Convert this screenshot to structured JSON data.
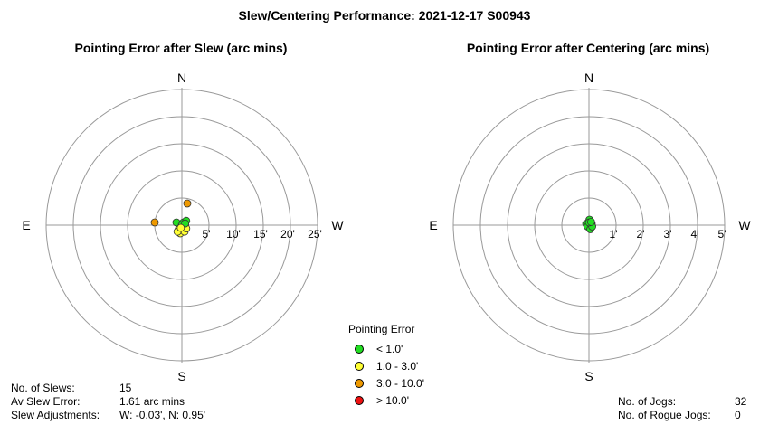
{
  "title": "Slew/Centering Performance: 2021-12-17  S00943",
  "legend": {
    "title": "Pointing Error",
    "items": [
      {
        "label": "< 1.0'",
        "color": "#22dd22"
      },
      {
        "label": "1.0 - 3.0'",
        "color": "#ffff33"
      },
      {
        "label": "3.0 - 10.0'",
        "color": "#ee9900"
      },
      {
        "label": "> 10.0'",
        "color": "#ee1111"
      }
    ]
  },
  "stats_left": {
    "slews_label": "No. of Slews:",
    "slews_value": "15",
    "av_label": "Av Slew Error:",
    "av_value": "1.61 arc mins",
    "adj_label": "Slew Adjustments:",
    "adj_value": "W: -0.03', N: 0.95'"
  },
  "stats_right": {
    "jogs_label": "No. of Jogs:",
    "jogs_value": "32",
    "rogue_label": "No. of Rogue Jogs:",
    "rogue_value": "0"
  },
  "chart_data": [
    {
      "type": "scatter",
      "title": "Pointing Error after Slew (arc mins)",
      "projection": "polar",
      "directions": {
        "n": "N",
        "s": "S",
        "e": "E",
        "w": "W"
      },
      "ring_labels": [
        "5'",
        "10'",
        "15'",
        "20'",
        "25'"
      ],
      "rmax": 25,
      "points": [
        {
          "x": 1.0,
          "y": 4.0,
          "cls": 2
        },
        {
          "x": -5.0,
          "y": 0.5,
          "cls": 2
        },
        {
          "x": -1.0,
          "y": 0.5,
          "cls": 0
        },
        {
          "x": 0.3,
          "y": 0.5,
          "cls": 0
        },
        {
          "x": 0.8,
          "y": 0.8,
          "cls": 0
        },
        {
          "x": 0.6,
          "y": 0.2,
          "cls": 0
        },
        {
          "x": 0.2,
          "y": -0.3,
          "cls": 1
        },
        {
          "x": -0.6,
          "y": -0.8,
          "cls": 1
        },
        {
          "x": -0.3,
          "y": -1.5,
          "cls": 1
        },
        {
          "x": 0.5,
          "y": -1.2,
          "cls": 1
        },
        {
          "x": 0.8,
          "y": -0.6,
          "cls": 1
        },
        {
          "x": -0.8,
          "y": -1.2,
          "cls": 1
        },
        {
          "x": 0.0,
          "y": 0.0,
          "cls": 0
        },
        {
          "x": 0.6,
          "y": 0.3,
          "cls": 0
        },
        {
          "x": -0.2,
          "y": -0.5,
          "cls": 1
        }
      ]
    },
    {
      "type": "scatter",
      "title": "Pointing Error after Centering (arc mins)",
      "projection": "polar",
      "directions": {
        "n": "N",
        "s": "S",
        "e": "E",
        "w": "W"
      },
      "ring_labels": [
        "1'",
        "2'",
        "3'",
        "4'",
        "5'"
      ],
      "rmax": 5,
      "points": [
        {
          "x": 0.02,
          "y": 0.2,
          "cls": 0
        },
        {
          "x": -0.1,
          "y": 0.05,
          "cls": 0
        },
        {
          "x": 0.1,
          "y": 0.05,
          "cls": 0
        },
        {
          "x": -0.05,
          "y": -0.05,
          "cls": 0
        },
        {
          "x": 0.05,
          "y": -0.15,
          "cls": 0
        },
        {
          "x": 0.12,
          "y": -0.05,
          "cls": 0
        },
        {
          "x": 0.0,
          "y": 0.1,
          "cls": 0
        },
        {
          "x": 0.08,
          "y": 0.12,
          "cls": 0
        }
      ]
    }
  ]
}
